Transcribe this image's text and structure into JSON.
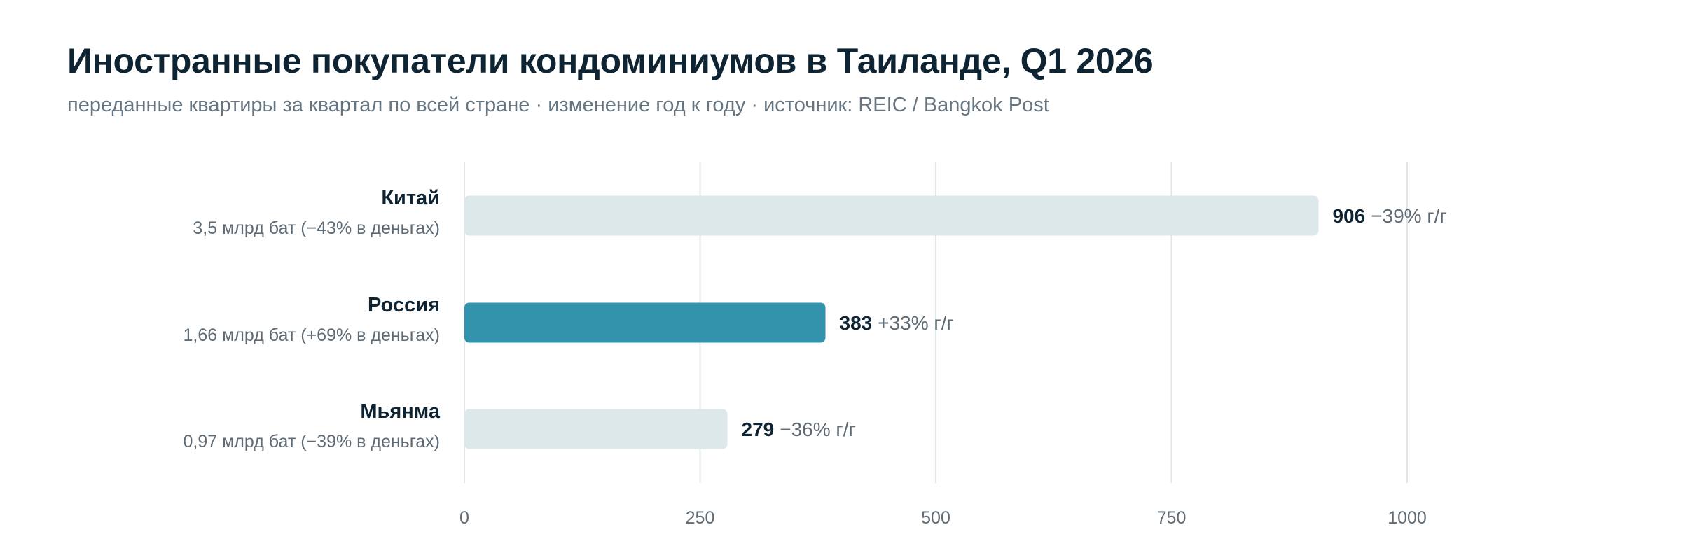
{
  "header": {
    "title": "Иностранные покупатели кондоминиумов в Таиланде, Q1 2026",
    "subtitle": "переданные квартиры за квартал по всей стране · изменение год к году · источник: REIC / Bangkok Post"
  },
  "chart_data": {
    "type": "bar",
    "orientation": "horizontal",
    "title": "Иностранные покупатели кондоминиумов в Таиланде, Q1 2026",
    "subtitle": "переданные квартиры за квартал по всей стране · изменение год к году · источник: REIC / Bangkok Post",
    "categories": [
      "Китай",
      "Россия",
      "Мьянма"
    ],
    "category_notes": [
      "3,5 млрд бат (−43% в деньгах)",
      "1,66 млрд бат (+69% в деньгах)",
      "0,97 млрд бат (−39% в деньгах)"
    ],
    "values": [
      906,
      383,
      279
    ],
    "value_labels": [
      "906",
      "383",
      "279"
    ],
    "change_labels": [
      "−39% г/г",
      "+33% г/г",
      "−36% г/г"
    ],
    "highlight": "Россия",
    "xlim": [
      0,
      1000
    ],
    "xticks": [
      0,
      250,
      500,
      750,
      1000
    ],
    "xtick_labels": [
      "0",
      "250",
      "500",
      "750",
      "1000"
    ],
    "grid": true,
    "legend": "none",
    "colors": {
      "highlight_bar": "#3493ac",
      "default_bar": "#dce8e9",
      "grid": "#e3e6e8"
    }
  }
}
